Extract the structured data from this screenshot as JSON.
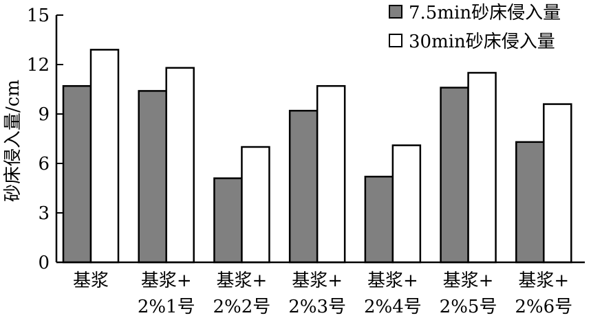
{
  "chart_data": {
    "type": "bar",
    "categories": [
      [
        "基浆"
      ],
      [
        "基浆+",
        "2%1号"
      ],
      [
        "基浆+",
        "2%2号"
      ],
      [
        "基浆+",
        "2%3号"
      ],
      [
        "基浆+",
        "2%4号"
      ],
      [
        "基浆+",
        "2%5号"
      ],
      [
        "基浆+",
        "2%6号"
      ]
    ],
    "series": [
      {
        "name": "7.5min砂床侵入量",
        "values": [
          10.7,
          10.4,
          5.1,
          9.2,
          5.2,
          10.6,
          7.3
        ],
        "color": "#808080"
      },
      {
        "name": "30min砂床侵入量",
        "values": [
          12.9,
          11.8,
          7.0,
          10.7,
          7.1,
          11.5,
          9.6
        ],
        "color": "#ffffff"
      }
    ],
    "title": "",
    "xlabel": "",
    "ylabel": "砂床侵入量/cm",
    "ylim": [
      0,
      15
    ],
    "yticks": [
      0,
      3,
      6,
      9,
      12,
      15
    ],
    "grid": false,
    "legend_position": "top-right"
  }
}
